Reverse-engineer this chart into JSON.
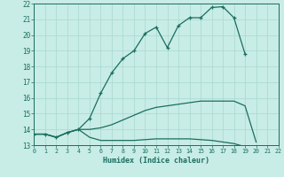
{
  "title": "",
  "xlabel": "Humidex (Indice chaleur)",
  "xlim": [
    0,
    22
  ],
  "ylim": [
    13,
    22
  ],
  "yticks": [
    13,
    14,
    15,
    16,
    17,
    18,
    19,
    20,
    21,
    22
  ],
  "xticks": [
    0,
    1,
    2,
    3,
    4,
    5,
    6,
    7,
    8,
    9,
    10,
    11,
    12,
    13,
    14,
    15,
    16,
    17,
    18,
    19,
    20,
    21,
    22
  ],
  "background_color": "#c8ece6",
  "grid_color": "#a8d8d0",
  "line_color": "#1a6e60",
  "line1_x": [
    0,
    1,
    2,
    3,
    4,
    5,
    6,
    7,
    8,
    9,
    10,
    11,
    12,
    13,
    14,
    15,
    16,
    17,
    18,
    19
  ],
  "line1_y": [
    13.7,
    13.7,
    13.5,
    13.8,
    14.0,
    14.7,
    16.3,
    17.6,
    18.5,
    19.0,
    20.1,
    20.5,
    19.2,
    20.6,
    21.1,
    21.1,
    21.75,
    21.8,
    21.1,
    18.8
  ],
  "line2_x": [
    0,
    1,
    2,
    3,
    4,
    5,
    6,
    7,
    8,
    9,
    10,
    11,
    12,
    13,
    14,
    15,
    16,
    17,
    18,
    19,
    20
  ],
  "line2_y": [
    13.7,
    13.7,
    13.5,
    13.8,
    14.0,
    14.0,
    14.1,
    14.3,
    14.6,
    14.9,
    15.2,
    15.4,
    15.5,
    15.6,
    15.7,
    15.8,
    15.8,
    15.8,
    15.8,
    15.5,
    13.2
  ],
  "line3_x": [
    0,
    1,
    2,
    3,
    4,
    5,
    6,
    7,
    8,
    9,
    10,
    11,
    12,
    13,
    14,
    15,
    16,
    17,
    18,
    19,
    20,
    21,
    22
  ],
  "line3_y": [
    13.7,
    13.7,
    13.5,
    13.8,
    14.0,
    13.5,
    13.3,
    13.3,
    13.3,
    13.3,
    13.35,
    13.4,
    13.4,
    13.4,
    13.4,
    13.35,
    13.3,
    13.2,
    13.1,
    12.9,
    12.9,
    12.9,
    12.75
  ]
}
